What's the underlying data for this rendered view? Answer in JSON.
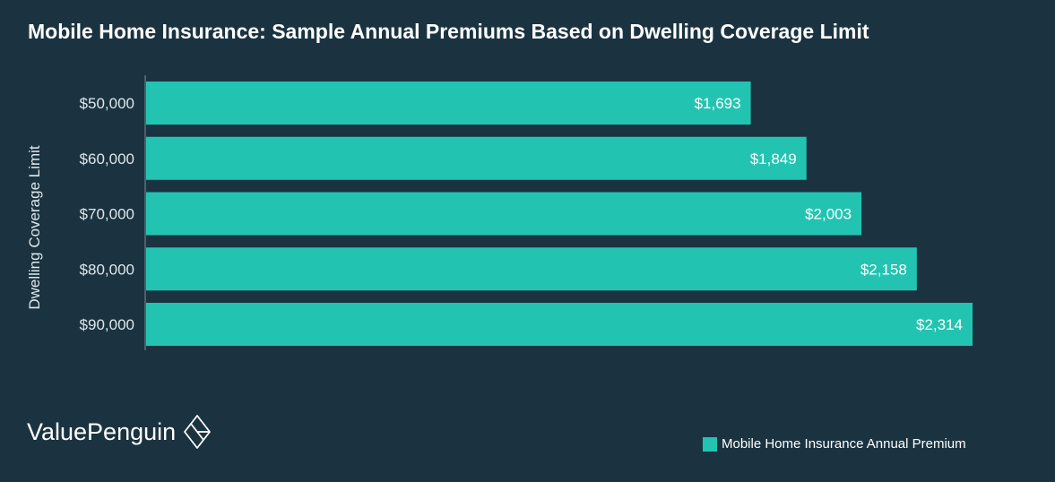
{
  "colors": {
    "background": "#1b3341",
    "bar": "#22c4b1",
    "text": "#ffffff",
    "axis_text": "#dfe6ea"
  },
  "chart_data": {
    "type": "bar",
    "orientation": "horizontal",
    "title": "Mobile Home Insurance: Sample Annual Premiums Based on Dwelling Coverage Limit",
    "ylabel": "Dwelling Coverage Limit",
    "xlabel": "",
    "categories": [
      "$50,000",
      "$60,000",
      "$70,000",
      "$80,000",
      "$90,000"
    ],
    "series": [
      {
        "name": "Mobile Home Insurance Annual Premium",
        "values": [
          1693,
          1849,
          2003,
          2158,
          2314
        ],
        "labels": [
          "$1,693",
          "$1,849",
          "$2,003",
          "$2,158",
          "$2,314"
        ]
      }
    ],
    "xlim": [
      0,
      2314
    ],
    "grid": false,
    "legend_position": "bottom-right"
  },
  "brand": {
    "name": "ValuePenguin",
    "logo_icon": "diamond-logo-icon"
  }
}
